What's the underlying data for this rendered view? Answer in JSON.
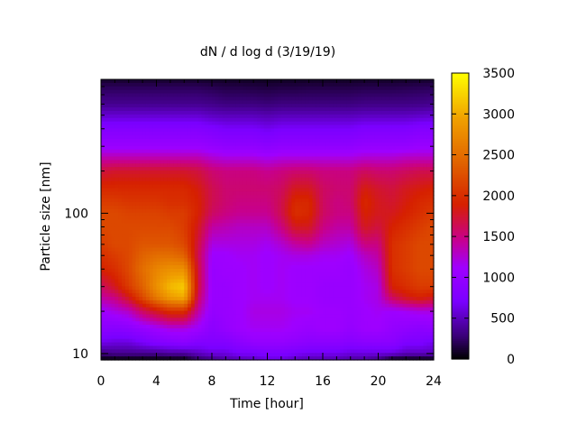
{
  "chart_data": {
    "type": "heatmap",
    "title": "dN / d log d (3/19/19)",
    "xlabel": "Time [hour]",
    "ylabel": "Particle size [nm]",
    "xlim": [
      0,
      24
    ],
    "x_ticks": [
      "0",
      "4",
      "8",
      "12",
      "16",
      "20",
      "24"
    ],
    "x_tick_values": [
      0,
      4,
      8,
      12,
      16,
      20,
      24
    ],
    "x_minor_step": 1,
    "y_scale": "log",
    "ylim": [
      9,
      900
    ],
    "y_ticks": [
      "10",
      "100"
    ],
    "y_tick_values": [
      10,
      100
    ],
    "colorbar": {
      "range": [
        0,
        3500
      ],
      "ticks": [
        "0",
        "500",
        "1000",
        "1500",
        "2000",
        "2500",
        "3000",
        "3500"
      ],
      "tick_values": [
        0,
        500,
        1000,
        1500,
        2000,
        2500,
        3000,
        3500
      ],
      "colormap": [
        "#000000",
        "#3a0078",
        "#7a00ff",
        "#9f00ff",
        "#c8008a",
        "#d62000",
        "#e06000",
        "#f0a000",
        "#ffff00"
      ],
      "colormap_stops": [
        0,
        0.08,
        0.2,
        0.32,
        0.42,
        0.54,
        0.68,
        0.84,
        1
      ]
    },
    "time_hours": [
      0,
      1,
      2,
      3,
      4,
      5,
      6,
      7,
      8,
      9,
      10,
      11,
      12,
      13,
      14,
      15,
      16,
      17,
      18,
      19,
      20,
      21,
      22,
      23,
      24
    ],
    "diameter_nm": [
      9,
      10,
      12,
      15,
      20,
      25,
      30,
      40,
      50,
      60,
      80,
      100,
      120,
      150,
      200,
      250,
      300,
      400,
      500,
      600,
      800,
      900
    ],
    "values": [
      [
        0,
        0,
        0,
        0,
        0,
        0,
        0,
        200,
        300,
        400,
        450,
        500,
        600,
        600,
        500,
        450,
        450,
        450,
        400,
        400,
        300,
        0,
        0,
        0,
        0
      ],
      [
        300,
        350,
        350,
        350,
        350,
        400,
        400,
        500,
        600,
        600,
        700,
        700,
        750,
        750,
        700,
        650,
        650,
        650,
        600,
        600,
        600,
        600,
        500,
        500,
        500
      ],
      [
        650,
        600,
        600,
        700,
        800,
        850,
        900,
        800,
        800,
        800,
        900,
        1000,
        1000,
        1000,
        950,
        900,
        900,
        900,
        850,
        900,
        900,
        900,
        750,
        750,
        650
      ],
      [
        900,
        850,
        900,
        1000,
        1100,
        1200,
        1200,
        1100,
        900,
        1000,
        1100,
        1150,
        1150,
        1150,
        1100,
        1050,
        1100,
        1100,
        1000,
        1100,
        1100,
        1000,
        950,
        900,
        950
      ],
      [
        1100,
        1200,
        1300,
        1600,
        1800,
        2000,
        2000,
        1400,
        1000,
        1050,
        1100,
        1200,
        1200,
        1200,
        1150,
        1150,
        1100,
        1100,
        1050,
        1100,
        1150,
        1100,
        1150,
        1200,
        1200
      ],
      [
        1400,
        1500,
        1800,
        2200,
        2600,
        2900,
        3000,
        1600,
        1050,
        1050,
        1100,
        1150,
        1150,
        1150,
        1100,
        1100,
        1050,
        1050,
        1050,
        1150,
        1200,
        1600,
        1800,
        1900,
        1800
      ],
      [
        1600,
        1800,
        2100,
        2400,
        2800,
        3100,
        3200,
        1700,
        1050,
        1050,
        1100,
        1150,
        1100,
        1150,
        1100,
        1100,
        1050,
        1050,
        1050,
        1150,
        1200,
        1900,
        2000,
        2100,
        2100
      ],
      [
        1900,
        2000,
        2200,
        2500,
        2700,
        2800,
        2800,
        1700,
        1050,
        1100,
        1100,
        1150,
        1100,
        1150,
        1100,
        1100,
        1100,
        1100,
        1050,
        1200,
        1300,
        2000,
        2100,
        2200,
        2200
      ],
      [
        2000,
        2100,
        2200,
        2400,
        2500,
        2500,
        2400,
        1650,
        1100,
        1100,
        1150,
        1150,
        1100,
        1150,
        1200,
        1200,
        1150,
        1150,
        1100,
        1300,
        1400,
        2000,
        2100,
        2200,
        2200
      ],
      [
        2100,
        2200,
        2200,
        2300,
        2300,
        2300,
        2200,
        1700,
        1200,
        1200,
        1200,
        1200,
        1150,
        1250,
        1400,
        1450,
        1300,
        1250,
        1200,
        1500,
        1500,
        2000,
        2100,
        2200,
        2200
      ],
      [
        2200,
        2200,
        2200,
        2200,
        2200,
        2200,
        2100,
        1800,
        1400,
        1350,
        1300,
        1300,
        1300,
        1500,
        1800,
        1800,
        1500,
        1400,
        1400,
        1800,
        1700,
        1900,
        2000,
        2100,
        2200
      ],
      [
        2200,
        2200,
        2150,
        2150,
        2150,
        2100,
        2100,
        1900,
        1600,
        1500,
        1450,
        1450,
        1450,
        1650,
        2000,
        1950,
        1600,
        1500,
        1500,
        1900,
        1800,
        1800,
        1900,
        2000,
        2100
      ],
      [
        2100,
        2100,
        2050,
        2050,
        2050,
        2000,
        2000,
        1900,
        1650,
        1550,
        1500,
        1500,
        1500,
        1650,
        1950,
        1950,
        1600,
        1500,
        1550,
        1950,
        1800,
        1750,
        1850,
        1950,
        2000
      ],
      [
        1950,
        1950,
        1950,
        1950,
        1950,
        1950,
        1950,
        1850,
        1650,
        1550,
        1550,
        1550,
        1550,
        1600,
        1800,
        1800,
        1600,
        1550,
        1550,
        1850,
        1750,
        1700,
        1800,
        1850,
        1900
      ],
      [
        1700,
        1750,
        1750,
        1750,
        1750,
        1750,
        1750,
        1700,
        1550,
        1500,
        1500,
        1500,
        1450,
        1500,
        1550,
        1550,
        1500,
        1500,
        1500,
        1600,
        1550,
        1550,
        1600,
        1650,
        1650
      ],
      [
        1350,
        1350,
        1350,
        1350,
        1350,
        1350,
        1350,
        1350,
        1250,
        1200,
        1200,
        1200,
        1150,
        1200,
        1200,
        1200,
        1200,
        1200,
        1200,
        1250,
        1250,
        1250,
        1300,
        1300,
        1300
      ],
      [
        1050,
        1050,
        1050,
        1050,
        1050,
        1050,
        1050,
        1050,
        1000,
        950,
        950,
        950,
        900,
        950,
        950,
        950,
        950,
        950,
        950,
        1000,
        1000,
        1000,
        1000,
        1050,
        1050
      ],
      [
        800,
        800,
        800,
        800,
        800,
        800,
        800,
        800,
        750,
        700,
        700,
        700,
        650,
        700,
        700,
        700,
        700,
        700,
        700,
        750,
        750,
        750,
        750,
        800,
        800
      ],
      [
        550,
        550,
        550,
        550,
        550,
        550,
        550,
        550,
        500,
        480,
        480,
        480,
        450,
        480,
        480,
        480,
        480,
        480,
        480,
        500,
        500,
        500,
        500,
        520,
        550
      ],
      [
        350,
        350,
        350,
        350,
        350,
        350,
        350,
        350,
        330,
        300,
        300,
        300,
        280,
        300,
        300,
        300,
        300,
        300,
        300,
        320,
        320,
        320,
        320,
        330,
        350
      ],
      [
        200,
        200,
        200,
        200,
        200,
        200,
        200,
        200,
        180,
        160,
        160,
        150,
        140,
        150,
        150,
        160,
        160,
        160,
        160,
        170,
        170,
        170,
        180,
        190,
        200
      ],
      [
        100,
        100,
        100,
        100,
        100,
        100,
        100,
        100,
        90,
        80,
        80,
        80,
        70,
        80,
        80,
        80,
        80,
        80,
        80,
        90,
        90,
        90,
        90,
        100,
        100
      ]
    ]
  }
}
